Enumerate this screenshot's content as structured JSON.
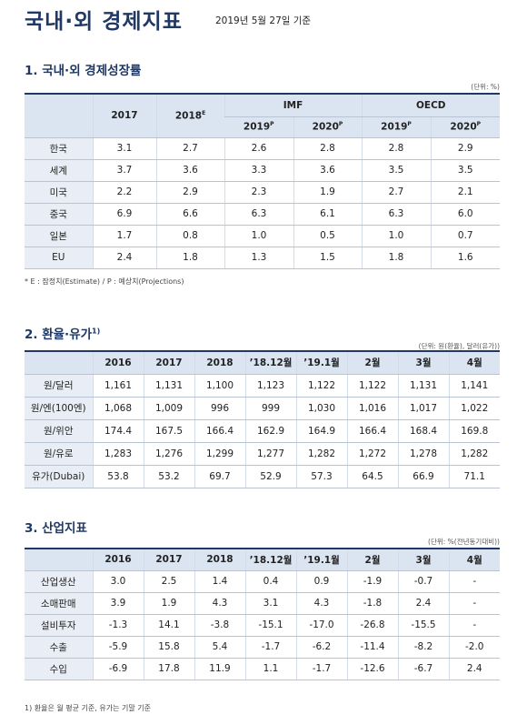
{
  "header": {
    "title": "국내·외 경제지표",
    "date": "2019년 5월 27일 기준"
  },
  "section1": {
    "title": "1. 국내·외 경제성장률",
    "unit": "(단위: %)",
    "groups": [
      {
        "label": "IMF"
      },
      {
        "label": "OECD"
      }
    ],
    "columns": [
      {
        "label": "2017"
      },
      {
        "label": "2018",
        "sup": "E"
      },
      {
        "label": "2019",
        "sup": "P"
      },
      {
        "label": "2020",
        "sup": "P"
      },
      {
        "label": "2019",
        "sup": "P"
      },
      {
        "label": "2020",
        "sup": "P"
      }
    ],
    "rows": [
      {
        "label": "한국",
        "values": [
          "3.1",
          "2.7",
          "2.6",
          "2.8",
          "2.8",
          "2.9"
        ]
      },
      {
        "label": "세계",
        "values": [
          "3.7",
          "3.6",
          "3.3",
          "3.6",
          "3.5",
          "3.5"
        ]
      },
      {
        "label": "미국",
        "values": [
          "2.2",
          "2.9",
          "2.3",
          "1.9",
          "2.7",
          "2.1"
        ]
      },
      {
        "label": "중국",
        "values": [
          "6.9",
          "6.6",
          "6.3",
          "6.1",
          "6.3",
          "6.0"
        ]
      },
      {
        "label": "일본",
        "values": [
          "1.7",
          "0.8",
          "1.0",
          "0.5",
          "1.0",
          "0.7"
        ]
      },
      {
        "label": "EU",
        "values": [
          "2.4",
          "1.8",
          "1.3",
          "1.5",
          "1.8",
          "1.6"
        ]
      }
    ],
    "note": "* E : 잠정치(Estimate) / P : 예상치(Projections)"
  },
  "section2": {
    "title": "2. 환율·유가",
    "title_sup": "1)",
    "unit": "(단위: 원(환율), 달러(유가))",
    "columns": [
      "2016",
      "2017",
      "2018",
      "’18.12월",
      "’19.1월",
      "2월",
      "3월",
      "4월"
    ],
    "rows": [
      {
        "label": "원/달러",
        "values": [
          "1,161",
          "1,131",
          "1,100",
          "1,123",
          "1,122",
          "1,122",
          "1,131",
          "1,141"
        ]
      },
      {
        "label": "원/엔(100엔)",
        "values": [
          "1,068",
          "1,009",
          "996",
          "999",
          "1,030",
          "1,016",
          "1,017",
          "1,022"
        ]
      },
      {
        "label": "원/위안",
        "values": [
          "174.4",
          "167.5",
          "166.4",
          "162.9",
          "164.9",
          "166.4",
          "168.4",
          "169.8"
        ]
      },
      {
        "label": "원/유로",
        "values": [
          "1,283",
          "1,276",
          "1,299",
          "1,277",
          "1,282",
          "1,272",
          "1,278",
          "1,282"
        ]
      },
      {
        "label": "유가(Dubai)",
        "values": [
          "53.8",
          "53.2",
          "69.7",
          "52.9",
          "57.3",
          "64.5",
          "66.9",
          "71.1"
        ]
      }
    ]
  },
  "section3": {
    "title": "3. 산업지표",
    "unit": "(단위: %(전년동기대비))",
    "columns": [
      "2016",
      "2017",
      "2018",
      "’18.12월",
      "’19.1월",
      "2월",
      "3월",
      "4월"
    ],
    "rows": [
      {
        "label": "산업생산",
        "values": [
          "3.0",
          "2.5",
          "1.4",
          "0.4",
          "0.9",
          "-1.9",
          "-0.7",
          "-"
        ]
      },
      {
        "label": "소매판매",
        "values": [
          "3.9",
          "1.9",
          "4.3",
          "3.1",
          "4.3",
          "-1.8",
          "2.4",
          "-"
        ]
      },
      {
        "label": "설비투자",
        "values": [
          "-1.3",
          "14.1",
          "-3.8",
          "-15.1",
          "-17.0",
          "-26.8",
          "-15.5",
          "-"
        ]
      },
      {
        "label": "수출",
        "values": [
          "-5.9",
          "15.8",
          "5.4",
          "-1.7",
          "-6.2",
          "-11.4",
          "-8.2",
          "-2.0"
        ]
      },
      {
        "label": "수입",
        "values": [
          "-6.9",
          "17.8",
          "11.9",
          "1.1",
          "-1.7",
          "-12.6",
          "-6.7",
          "2.4"
        ]
      }
    ]
  },
  "footnote": "1) 환율은 월 평균 기준, 유가는 기말 기준"
}
